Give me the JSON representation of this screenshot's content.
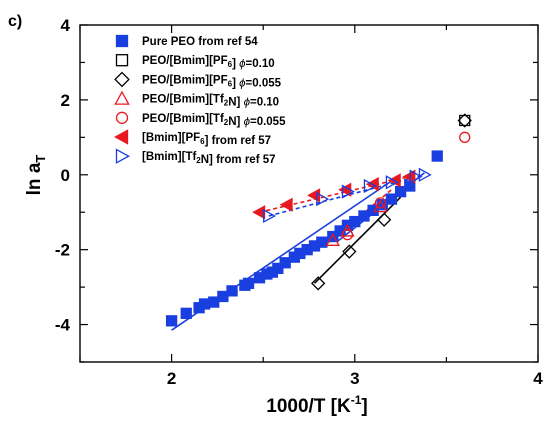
{
  "chart_data": {
    "type": "scatter",
    "panel_label": "c)",
    "xlabel": "1000/T [K⁻¹]",
    "ylabel": "ln aT",
    "xlim": [
      1.5,
      4.0
    ],
    "ylim": [
      -5.0,
      4.0
    ],
    "x_ticks": [
      "2",
      "3",
      "4"
    ],
    "y_ticks": [
      "4",
      "2",
      "0",
      "-2",
      "-4"
    ],
    "x_tick_values": [
      2,
      3,
      4
    ],
    "y_tick_values": [
      4,
      2,
      0,
      -2,
      -4
    ],
    "legend_position": "top-left",
    "series": [
      {
        "name": "Pure PEO from ref 54",
        "marker": "square",
        "filled": true,
        "color": "#1a3fe0",
        "x": [
          2.0,
          2.08,
          2.15,
          2.18,
          2.23,
          2.28,
          2.33,
          2.4,
          2.42,
          2.48,
          2.52,
          2.55,
          2.58,
          2.62,
          2.67,
          2.7,
          2.74,
          2.78,
          2.82,
          2.88,
          2.92,
          2.96,
          3.0,
          3.05,
          3.1,
          3.15,
          3.2,
          3.25,
          3.3,
          3.45
        ],
        "y": [
          -3.9,
          -3.7,
          -3.55,
          -3.45,
          -3.4,
          -3.25,
          -3.1,
          -2.95,
          -2.9,
          -2.75,
          -2.65,
          -2.6,
          -2.5,
          -2.35,
          -2.2,
          -2.1,
          -2.0,
          -1.9,
          -1.8,
          -1.65,
          -1.5,
          -1.35,
          -1.25,
          -1.1,
          -0.95,
          -0.8,
          -0.65,
          -0.45,
          -0.3,
          0.5
        ]
      },
      {
        "name": "PEO/[Bmim][PF6] φ=0.10",
        "marker": "square",
        "filled": false,
        "color": "#000000",
        "x": [
          3.6
        ],
        "y": [
          1.45
        ]
      },
      {
        "name": "PEO/[Bmim][PF6] φ=0.055",
        "marker": "diamond",
        "filled": false,
        "color": "#000000",
        "x": [
          2.8,
          2.97,
          3.16,
          3.6
        ],
        "y": [
          -2.9,
          -2.05,
          -1.2,
          1.45
        ]
      },
      {
        "name": "PEO/[Bmim][Tf2N] φ=0.10",
        "marker": "triangle-up",
        "filled": false,
        "color": "#e8191e",
        "x": [
          2.88,
          2.96,
          3.14
        ],
        "y": [
          -1.75,
          -1.5,
          -0.85
        ]
      },
      {
        "name": "PEO/[Bmim][Tf2N] φ=0.055",
        "marker": "circle",
        "filled": false,
        "color": "#e8191e",
        "x": [
          2.96,
          3.14,
          3.6
        ],
        "y": [
          -1.6,
          -0.75,
          1.0
        ]
      },
      {
        "name": "[Bmim][PF6] from ref 57",
        "marker": "triangle-left",
        "filled": true,
        "color": "#e8191e",
        "x": [
          2.48,
          2.63,
          2.78,
          2.95,
          3.1,
          3.22,
          3.3
        ],
        "y": [
          -1.0,
          -0.8,
          -0.55,
          -0.4,
          -0.25,
          -0.15,
          -0.05
        ]
      },
      {
        "name": "[Bmim][Tf2N] from ref 57",
        "marker": "triangle-right",
        "filled": false,
        "color": "#1a3fe0",
        "x": [
          2.53,
          2.82,
          2.96,
          3.08,
          3.2,
          3.33,
          3.38
        ],
        "y": [
          -1.1,
          -0.65,
          -0.45,
          -0.3,
          -0.2,
          -0.05,
          0.0
        ]
      }
    ],
    "fit_lines": [
      {
        "color": "#1a3fe0",
        "style": "solid",
        "x": [
          2.0,
          3.22
        ],
        "y": [
          -4.15,
          -0.1
        ]
      },
      {
        "color": "#1a3fe0",
        "style": "solid",
        "x": [
          2.9,
          3.38
        ],
        "y": [
          -1.8,
          0.05
        ]
      },
      {
        "color": "#000000",
        "style": "solid",
        "x": [
          2.78,
          3.25
        ],
        "y": [
          -2.9,
          -0.6
        ]
      },
      {
        "color": "#e8191e",
        "style": "dashed",
        "x": [
          2.86,
          3.2
        ],
        "y": [
          -1.8,
          -0.4
        ]
      },
      {
        "color": "#e8191e",
        "style": "dashed",
        "x": [
          2.48,
          3.3
        ],
        "y": [
          -1.0,
          -0.05
        ]
      },
      {
        "color": "#1a3fe0",
        "style": "dashed",
        "x": [
          2.53,
          3.38
        ],
        "y": [
          -1.1,
          0.0
        ]
      }
    ]
  },
  "legend": [
    {
      "parts": [
        {
          "t": "Pure PEO from ref 54"
        }
      ]
    },
    {
      "parts": [
        {
          "t": "PEO/[Bmim][PF"
        },
        {
          "t": "6",
          "sub": true
        },
        {
          "t": "] "
        },
        {
          "t": "ϕ",
          "sym": true
        },
        {
          "t": "=0.10"
        }
      ]
    },
    {
      "parts": [
        {
          "t": "PEO/[Bmim][PF"
        },
        {
          "t": "6",
          "sub": true
        },
        {
          "t": "] "
        },
        {
          "t": "ϕ",
          "sym": true
        },
        {
          "t": "=0.055"
        }
      ]
    },
    {
      "parts": [
        {
          "t": "PEO/[Bmim][Tf"
        },
        {
          "t": "2",
          "sub": true
        },
        {
          "t": "N] "
        },
        {
          "t": "ϕ",
          "sym": true
        },
        {
          "t": "=0.10"
        }
      ]
    },
    {
      "parts": [
        {
          "t": "PEO/[Bmim][Tf"
        },
        {
          "t": "2",
          "sub": true
        },
        {
          "t": "N] "
        },
        {
          "t": "ϕ",
          "sym": true
        },
        {
          "t": "=0.055"
        }
      ]
    },
    {
      "parts": [
        {
          "t": "[Bmim][PF"
        },
        {
          "t": "6",
          "sub": true
        },
        {
          "t": "] from ref 57"
        }
      ]
    },
    {
      "parts": [
        {
          "t": "[Bmim][Tf"
        },
        {
          "t": "2",
          "sub": true
        },
        {
          "t": "N] from ref 57"
        }
      ]
    }
  ]
}
